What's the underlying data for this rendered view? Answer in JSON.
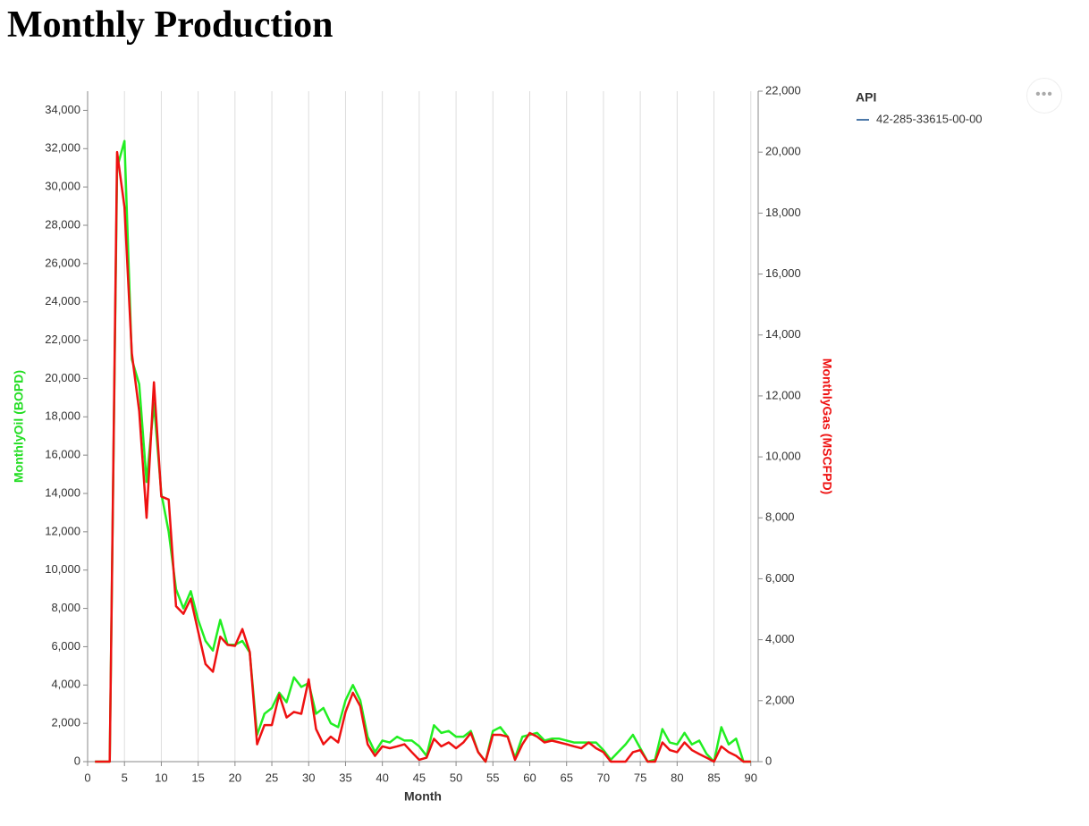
{
  "page_title": "Monthly Production",
  "chart_data": {
    "type": "line",
    "xlabel": "Month",
    "ylabel": "MonthlyOil (BOPD)",
    "y2label": "MonthlyGas (MSCFPD)",
    "ylabel_color": "#22dd22",
    "y2label_color": "#ee1111",
    "xlim": [
      0,
      91
    ],
    "xticks": [
      0,
      5,
      10,
      15,
      20,
      25,
      30,
      35,
      40,
      45,
      50,
      55,
      60,
      65,
      70,
      75,
      80,
      85,
      90
    ],
    "ylim": [
      0,
      35000
    ],
    "yticks": [
      0,
      {
        "value": 2000,
        "label": "2,000"
      },
      {
        "value": 4000,
        "label": "4,000"
      },
      {
        "value": 6000,
        "label": "6,000"
      },
      {
        "value": 8000,
        "label": "8,000"
      },
      {
        "value": 10000,
        "label": "10,000"
      },
      {
        "value": 12000,
        "label": "12,000"
      },
      {
        "value": 14000,
        "label": "14,000"
      },
      {
        "value": 16000,
        "label": "16,000"
      },
      {
        "value": 18000,
        "label": "18,000"
      },
      {
        "value": 20000,
        "label": "20,000"
      },
      {
        "value": 22000,
        "label": "22,000"
      },
      {
        "value": 24000,
        "label": "24,000"
      },
      {
        "value": 26000,
        "label": "26,000"
      },
      {
        "value": 28000,
        "label": "28,000"
      },
      {
        "value": 30000,
        "label": "30,000"
      },
      {
        "value": 32000,
        "label": "32,000"
      },
      {
        "value": 34000,
        "label": "34,000"
      }
    ],
    "y2lim": [
      0,
      22000
    ],
    "y2ticks": [
      0,
      {
        "value": 2000,
        "label": "2,000"
      },
      {
        "value": 4000,
        "label": "4,000"
      },
      {
        "value": 6000,
        "label": "6,000"
      },
      {
        "value": 8000,
        "label": "8,000"
      },
      {
        "value": 10000,
        "label": "10,000"
      },
      {
        "value": 12000,
        "label": "12,000"
      },
      {
        "value": 14000,
        "label": "14,000"
      },
      {
        "value": 16000,
        "label": "16,000"
      },
      {
        "value": 18000,
        "label": "18,000"
      },
      {
        "value": 20000,
        "label": "20,000"
      },
      {
        "value": 22000,
        "label": "22,000"
      }
    ],
    "grid_x": true,
    "x": [
      1,
      2,
      3,
      4,
      5,
      6,
      7,
      8,
      9,
      10,
      11,
      12,
      13,
      14,
      15,
      16,
      17,
      18,
      19,
      20,
      21,
      22,
      23,
      24,
      25,
      26,
      27,
      28,
      29,
      30,
      31,
      32,
      33,
      34,
      35,
      36,
      37,
      38,
      39,
      40,
      41,
      42,
      43,
      44,
      45,
      46,
      47,
      48,
      49,
      50,
      51,
      52,
      53,
      54,
      55,
      56,
      57,
      58,
      59,
      60,
      61,
      62,
      63,
      64,
      65,
      66,
      67,
      68,
      69,
      70,
      71,
      72,
      73,
      74,
      75,
      76,
      77,
      78,
      79,
      80,
      81,
      82,
      83,
      84,
      85,
      86,
      87,
      88,
      89,
      90
    ],
    "series": [
      {
        "color": "#22ee22",
        "axis": "y",
        "values": [
          0,
          0,
          0,
          31000,
          32400,
          21000,
          19700,
          14600,
          18700,
          14000,
          12000,
          9000,
          8000,
          8900,
          7400,
          6300,
          5800,
          7400,
          6100,
          6100,
          6300,
          5700,
          1400,
          2500,
          2800,
          3600,
          3100,
          4400,
          3900,
          4100,
          2500,
          2800,
          2000,
          1800,
          3200,
          4000,
          3200,
          1300,
          500,
          1100,
          1000,
          1300,
          1100,
          1100,
          800,
          300,
          1900,
          1500,
          1600,
          1300,
          1300,
          1600,
          500,
          0,
          1600,
          1800,
          1300,
          200,
          1300,
          1400,
          1500,
          1100,
          1200,
          1200,
          1100,
          1000,
          1000,
          1000,
          1000,
          600,
          100,
          500,
          900,
          1400,
          700,
          0,
          100,
          1700,
          1000,
          900,
          1500,
          900,
          1100,
          400,
          0,
          1800,
          900,
          1200,
          0,
          0
        ]
      },
      {
        "color": "#ee1111",
        "axis": "y2",
        "values": [
          0,
          0,
          0,
          20000,
          18200,
          13400,
          11500,
          8000,
          12450,
          8700,
          8600,
          5100,
          4850,
          5350,
          4270,
          3200,
          2950,
          4100,
          3830,
          3800,
          4350,
          3600,
          570,
          1200,
          1200,
          2200,
          1450,
          1630,
          1570,
          2700,
          1070,
          570,
          820,
          630,
          1630,
          2260,
          1820,
          570,
          190,
          500,
          440,
          500,
          570,
          310,
          60,
          130,
          750,
          500,
          630,
          440,
          630,
          940,
          310,
          0,
          880,
          880,
          820,
          60,
          570,
          940,
          820,
          630,
          690,
          630,
          570,
          500,
          440,
          630,
          440,
          310,
          0,
          0,
          0,
          310,
          380,
          0,
          0,
          630,
          380,
          310,
          630,
          380,
          250,
          130,
          0,
          500,
          310,
          190,
          0,
          0
        ]
      }
    ],
    "legend": {
      "title": "API",
      "entries": [
        {
          "label": "42-285-33615-00-00",
          "color": "#4c78a8"
        }
      ]
    }
  }
}
